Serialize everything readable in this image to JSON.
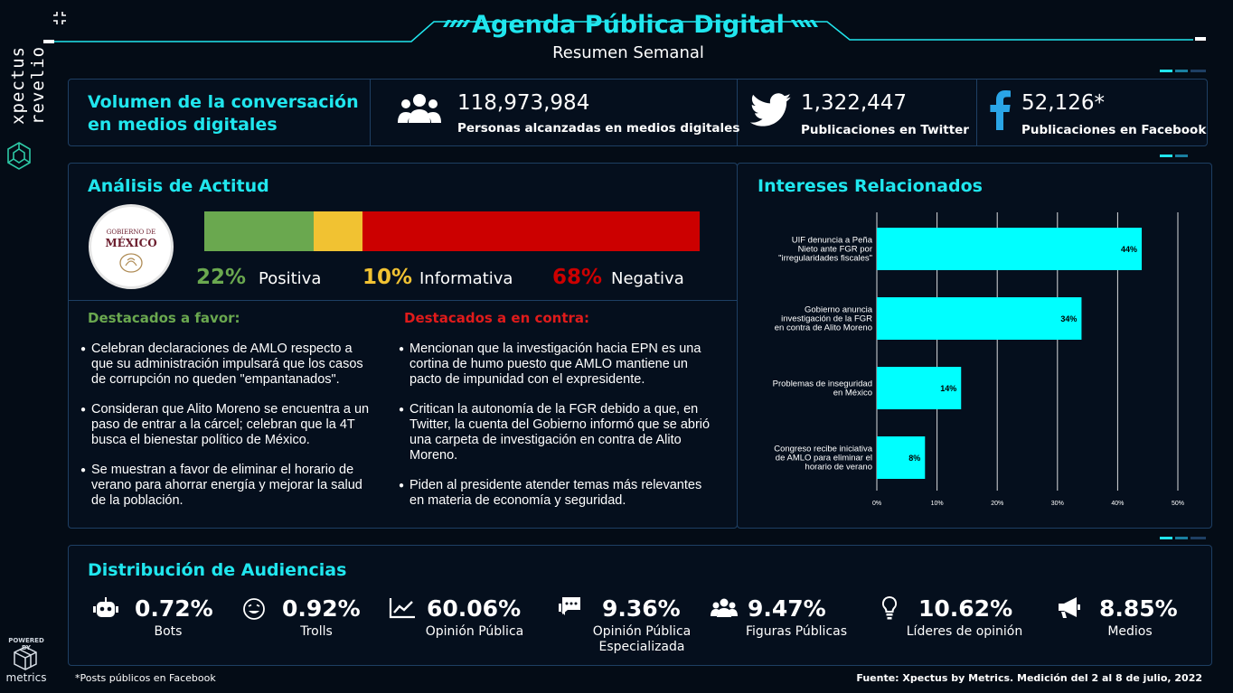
{
  "header": {
    "title": "Agenda Pública Digital",
    "subtitle": "Resumen Semanal"
  },
  "brand": {
    "name": "xpectus revelio",
    "powered_by": "POWERED BY",
    "powered_name": "metrics"
  },
  "volume": {
    "title_line1": "Volumen de la conversación",
    "title_line2": "en medios digitales",
    "metrics": [
      {
        "value": "118,973,984",
        "label": "Personas alcanzadas en medios digitales",
        "icon": "people-icon"
      },
      {
        "value": "1,322,447",
        "label": "Publicaciones en Twitter",
        "icon": "twitter-icon"
      },
      {
        "value": "52,126*",
        "label": "Publicaciones en Facebook",
        "icon": "facebook-icon"
      }
    ]
  },
  "attitude": {
    "title": "Análisis de Actitud",
    "logo_line1": "GOBIERNO DE",
    "logo_line2": "MÉXICO",
    "positive": {
      "pct": "22%",
      "label": "Positiva",
      "value": 22,
      "color": "#6aa84f"
    },
    "informative": {
      "pct": "10%",
      "label": "Informativa",
      "value": 10,
      "color": "#f1c232"
    },
    "negative": {
      "pct": "68%",
      "label": "Negativa",
      "value": 68,
      "color": "#cc0000"
    },
    "favor_title": "Destacados a favor:",
    "against_title": "Destacados a en contra:",
    "favor_items": [
      "Celebran declaraciones de AMLO respecto a que su administración impulsará que los casos de corrupción no queden \"empantanados\".",
      "Consideran que Alito Moreno se encuentra a un paso de entrar a la cárcel; celebran que la 4T busca el bienestar político de México.",
      "Se muestran a favor de eliminar el horario de verano para ahorrar energía y mejorar la salud de la población."
    ],
    "against_items": [
      "Mencionan que la investigación hacia EPN es una cortina de humo puesto que AMLO mantiene un pacto de impunidad con el expresidente.",
      "Critican la autonomía de la FGR debido a que, en Twitter, la cuenta del Gobierno informó que se abrió una carpeta de investigación en contra de Alito Moreno.",
      "Piden al presidente atender temas más relevantes en materia de economía y seguridad."
    ]
  },
  "chart_data": {
    "type": "bar",
    "orientation": "horizontal",
    "title": "Intereses Relacionados",
    "categories": [
      [
        "UIF denuncia a Peña",
        "Nieto ante FGR por",
        "\"irregularidades fiscales\""
      ],
      [
        "Gobierno anuncia",
        "investigación de la FGR",
        "en contra de Alito Moreno"
      ],
      [
        "Problemas de inseguridad",
        "en México"
      ],
      [
        "Congreso recibe iniciativa",
        "de AMLO para eliminar el",
        "horario de verano"
      ]
    ],
    "values": [
      44,
      34,
      14,
      8
    ],
    "value_labels": [
      "44%",
      "34%",
      "14%",
      "8%"
    ],
    "xlim": [
      0,
      50
    ],
    "ticks": [
      "0%",
      "10%",
      "20%",
      "30%",
      "40%",
      "50%"
    ],
    "bar_color": "#00ffff",
    "grid": true
  },
  "audiences": {
    "title": "Distribución de Audiencias",
    "items": [
      {
        "value": "0.72%",
        "label": "Bots",
        "icon": "robot-icon"
      },
      {
        "value": "0.92%",
        "label": "Trolls",
        "icon": "troll-face-icon"
      },
      {
        "value": "60.06%",
        "label": "Opinión Pública",
        "icon": "trend-chart-icon"
      },
      {
        "value": "9.36%",
        "label": "Opinión Pública",
        "label2": "Especializada",
        "icon": "chat-bubble-icon"
      },
      {
        "value": "9.47%",
        "label": "Figuras Públicas",
        "icon": "group-icon"
      },
      {
        "value": "10.62%",
        "label": "Líderes de opinión",
        "icon": "lightbulb-icon"
      },
      {
        "value": "8.85%",
        "label": "Medios",
        "icon": "megaphone-icon"
      }
    ]
  },
  "footer": {
    "note": "*Posts públicos en Facebook",
    "source": "Fuente: Xpectus by Metrics. Medición del 2 al 8 de julio, 2022"
  },
  "colors": {
    "accent": "#20e6ee",
    "panel_border": "#1e3f63",
    "background": "#040c16"
  }
}
